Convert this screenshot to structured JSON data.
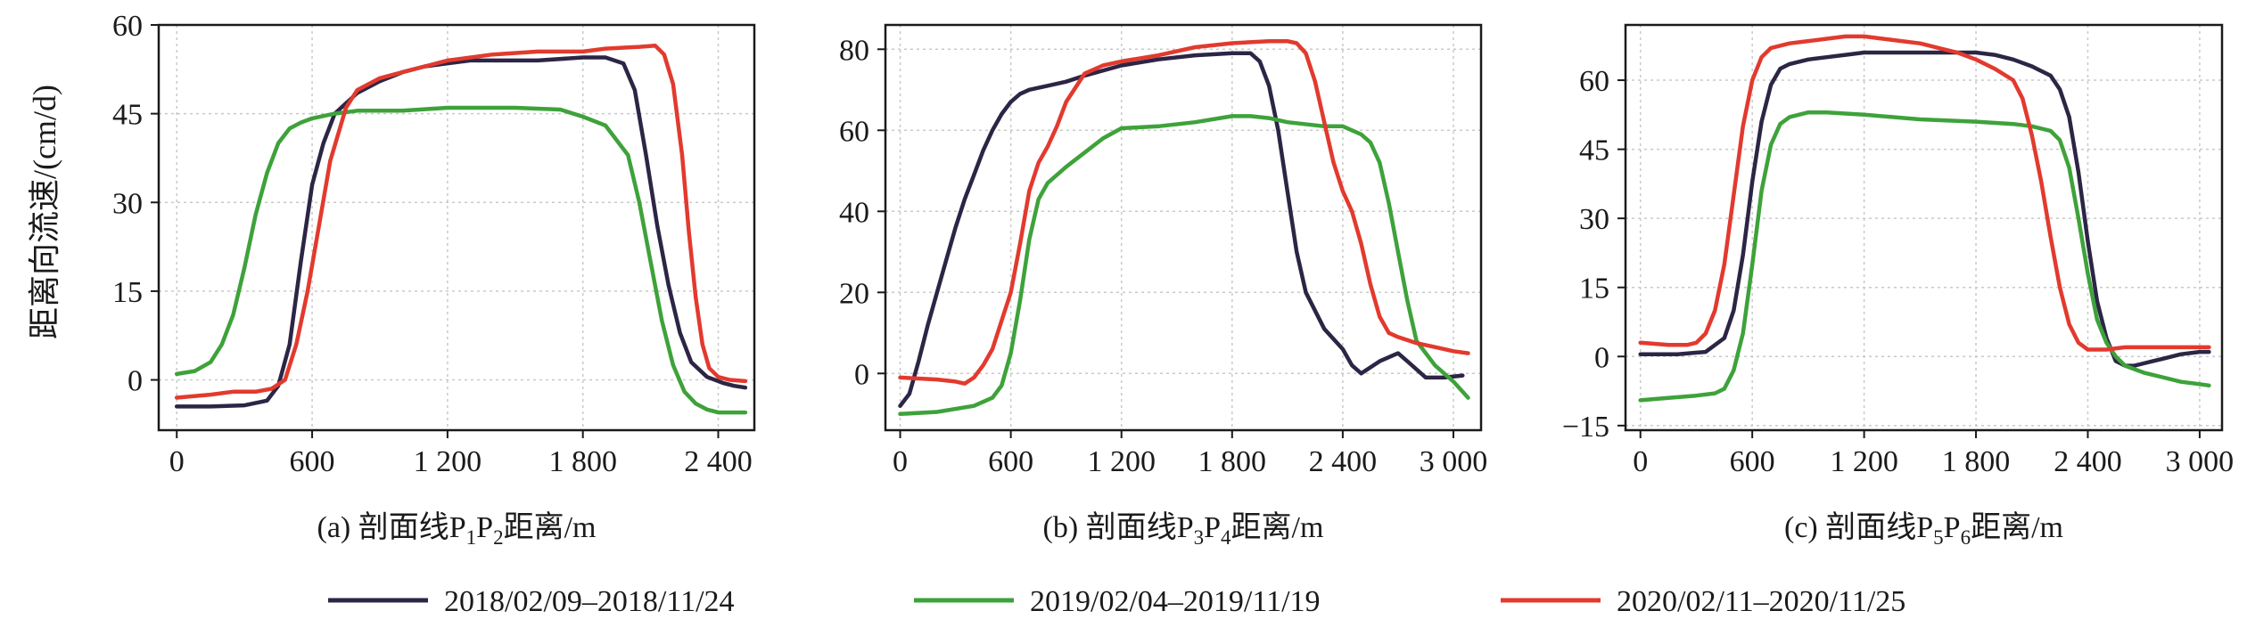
{
  "figure": {
    "ylabel": "距离向流速/(cm/d)",
    "series_names": [
      "2018/02/09–2018/11/24",
      "2019/02/04–2019/11/19",
      "2020/02/11–2020/11/25"
    ],
    "colors": [
      "#2d2545",
      "#3ea23a",
      "#e23a2e"
    ]
  },
  "chart_data": [
    {
      "type": "line",
      "caption": "(a) 剖面线P1P2距离/m",
      "caption_parts": {
        "pre": "(a) 剖面线P",
        "s1": "1",
        "mid": "P",
        "s2": "2",
        "post": "距离/m"
      },
      "xlabel": "距离/m",
      "ylabel": "距离向流速/(cm/d)",
      "xlim": [
        -80,
        2560
      ],
      "ylim": [
        -8.5,
        60
      ],
      "xticks": [
        0,
        600,
        1200,
        1800,
        2400
      ],
      "xtick_labels": [
        "0",
        "600",
        "1 200",
        "1 800",
        "2 400"
      ],
      "yticks": [
        0,
        15,
        30,
        45,
        60
      ],
      "ytick_labels": [
        "0",
        "15",
        "30",
        "45",
        "60"
      ],
      "grid": true,
      "series": [
        {
          "name": "2018/02/09–2018/11/24",
          "color": "#2d2545",
          "x": [
            0,
            150,
            300,
            400,
            450,
            500,
            550,
            600,
            650,
            700,
            800,
            900,
            1000,
            1100,
            1200,
            1300,
            1400,
            1600,
            1800,
            1900,
            1980,
            2030,
            2080,
            2130,
            2180,
            2230,
            2280,
            2350,
            2420,
            2470,
            2520
          ],
          "y": [
            -4.5,
            -4.5,
            -4.3,
            -3.5,
            -1,
            6,
            20,
            33,
            40,
            45,
            48.5,
            50.5,
            52,
            53,
            53.5,
            54,
            54,
            54,
            54.5,
            54.5,
            53.5,
            49,
            38,
            26,
            16,
            8,
            3,
            0.5,
            -0.5,
            -1,
            -1.3
          ]
        },
        {
          "name": "2019/02/04–2019/11/19",
          "color": "#3ea23a",
          "x": [
            0,
            80,
            150,
            200,
            250,
            300,
            350,
            400,
            450,
            500,
            550,
            600,
            700,
            800,
            1000,
            1200,
            1300,
            1500,
            1700,
            1800,
            1900,
            2000,
            2050,
            2100,
            2150,
            2200,
            2250,
            2300,
            2350,
            2400,
            2450,
            2520
          ],
          "y": [
            1,
            1.5,
            3,
            6,
            11,
            19,
            28,
            35,
            40,
            42.5,
            43.5,
            44.2,
            45,
            45.5,
            45.5,
            46,
            46,
            46,
            45.7,
            44.5,
            43,
            38,
            30,
            20,
            10,
            2.5,
            -2,
            -4,
            -5,
            -5.5,
            -5.5,
            -5.5
          ]
        },
        {
          "name": "2020/02/11–2020/11/25",
          "color": "#e23a2e",
          "x": [
            0,
            150,
            250,
            350,
            420,
            480,
            530,
            580,
            630,
            680,
            750,
            800,
            900,
            1000,
            1100,
            1200,
            1400,
            1600,
            1800,
            1900,
            2000,
            2050,
            2120,
            2160,
            2200,
            2240,
            2270,
            2300,
            2330,
            2360,
            2400,
            2450,
            2520
          ],
          "y": [
            -3,
            -2.5,
            -2,
            -2,
            -1.5,
            0,
            6,
            15,
            26,
            37,
            46,
            49,
            51,
            52,
            53,
            54,
            55,
            55.5,
            55.5,
            56,
            56.2,
            56.3,
            56.5,
            55,
            50,
            38,
            25,
            14,
            6,
            2,
            0.5,
            0,
            -0.2
          ]
        }
      ]
    },
    {
      "type": "line",
      "caption": "(b) 剖面线P3P4距离/m",
      "caption_parts": {
        "pre": "(b) 剖面线P",
        "s1": "3",
        "mid": "P",
        "s2": "4",
        "post": "距离/m"
      },
      "xlabel": "距离/m",
      "ylabel": "",
      "xlim": [
        -80,
        3150
      ],
      "ylim": [
        -14,
        86
      ],
      "xticks": [
        0,
        600,
        1200,
        1800,
        2400,
        3000
      ],
      "xtick_labels": [
        "0",
        "600",
        "1 200",
        "1 800",
        "2 400",
        "3 000"
      ],
      "yticks": [
        0,
        20,
        40,
        60,
        80
      ],
      "ytick_labels": [
        "0",
        "20",
        "40",
        "60",
        "80"
      ],
      "grid": true,
      "series": [
        {
          "name": "2018/02/09–2018/11/24",
          "color": "#2d2545",
          "x": [
            0,
            50,
            100,
            150,
            200,
            250,
            300,
            350,
            400,
            450,
            500,
            550,
            600,
            650,
            700,
            800,
            900,
            1000,
            1200,
            1400,
            1600,
            1800,
            1900,
            1950,
            2000,
            2050,
            2100,
            2150,
            2200,
            2300,
            2400,
            2450,
            2500,
            2600,
            2700,
            2750,
            2850,
            2950,
            3050
          ],
          "y": [
            -8,
            -5,
            3,
            12,
            20,
            28,
            36,
            43,
            49,
            55,
            60,
            64,
            67,
            69,
            70,
            71,
            72,
            73.5,
            76,
            77.5,
            78.5,
            79,
            79,
            77,
            71,
            60,
            45,
            30,
            20,
            11,
            6,
            2,
            0,
            3,
            5,
            3,
            -1,
            -1,
            -0.5
          ]
        },
        {
          "name": "2019/02/04–2019/11/19",
          "color": "#3ea23a",
          "x": [
            0,
            200,
            400,
            500,
            550,
            600,
            650,
            700,
            750,
            800,
            900,
            1000,
            1100,
            1200,
            1400,
            1600,
            1800,
            1900,
            2000,
            2100,
            2300,
            2400,
            2500,
            2550,
            2600,
            2650,
            2700,
            2750,
            2800,
            2900,
            3000,
            3080
          ],
          "y": [
            -10,
            -9.5,
            -8,
            -6,
            -3,
            5,
            18,
            33,
            43,
            47,
            51,
            54.5,
            58,
            60.5,
            61,
            62,
            63.5,
            63.5,
            63,
            62,
            61,
            61,
            59,
            57,
            52,
            42,
            30,
            18,
            8,
            2,
            -2,
            -6
          ]
        },
        {
          "name": "2020/02/11–2020/11/25",
          "color": "#e23a2e",
          "x": [
            0,
            200,
            300,
            350,
            400,
            450,
            500,
            550,
            600,
            650,
            700,
            750,
            800,
            850,
            900,
            1000,
            1100,
            1200,
            1400,
            1600,
            1800,
            2000,
            2100,
            2150,
            2200,
            2250,
            2300,
            2350,
            2400,
            2450,
            2500,
            2550,
            2600,
            2650,
            2700,
            2800,
            2900,
            3000,
            3080
          ],
          "y": [
            -1,
            -1.5,
            -2,
            -2.5,
            -1,
            2,
            6,
            13,
            20,
            32,
            45,
            52,
            56,
            61,
            67,
            74,
            76,
            77,
            78.5,
            80.5,
            81.5,
            82,
            82,
            81.5,
            79,
            72,
            62,
            52,
            45,
            40,
            32,
            22,
            14,
            10,
            9,
            7.5,
            6.5,
            5.5,
            5
          ]
        }
      ]
    },
    {
      "type": "line",
      "caption": "(c) 剖面线P5P6距离/m",
      "caption_parts": {
        "pre": "(c) 剖面线P",
        "s1": "5",
        "mid": "P",
        "s2": "6",
        "post": "距离/m"
      },
      "xlabel": "距离/m",
      "ylabel": "",
      "xlim": [
        -80,
        3120
      ],
      "ylim": [
        -16,
        72
      ],
      "xticks": [
        0,
        600,
        1200,
        1800,
        2400,
        3000
      ],
      "xtick_labels": [
        "0",
        "600",
        "1 200",
        "1 800",
        "2 400",
        "3 000"
      ],
      "yticks": [
        -15,
        0,
        15,
        30,
        45,
        60
      ],
      "ytick_labels": [
        "−15",
        "0",
        "15",
        "30",
        "45",
        "60"
      ],
      "grid": true,
      "series": [
        {
          "name": "2018/02/09–2018/11/24",
          "color": "#2d2545",
          "x": [
            0,
            200,
            350,
            450,
            500,
            550,
            600,
            650,
            700,
            750,
            800,
            900,
            1000,
            1100,
            1200,
            1400,
            1600,
            1800,
            1900,
            2000,
            2100,
            2200,
            2250,
            2300,
            2350,
            2400,
            2450,
            2500,
            2550,
            2600,
            2650,
            2700,
            2800,
            2900,
            3000,
            3050
          ],
          "y": [
            0.5,
            0.5,
            1,
            4,
            10,
            22,
            38,
            51,
            59,
            62.5,
            63.5,
            64.5,
            65,
            65.5,
            66,
            66,
            66,
            66,
            65.5,
            64.5,
            63,
            61,
            58,
            52,
            40,
            25,
            12,
            4,
            -1,
            -2,
            -2,
            -1.5,
            -0.5,
            0.5,
            1,
            1
          ]
        },
        {
          "name": "2019/02/04–2019/11/19",
          "color": "#3ea23a",
          "x": [
            0,
            150,
            300,
            400,
            450,
            500,
            550,
            600,
            650,
            700,
            750,
            800,
            900,
            1000,
            1200,
            1500,
            1800,
            2000,
            2100,
            2200,
            2250,
            2300,
            2350,
            2400,
            2450,
            2500,
            2550,
            2600,
            2700,
            2800,
            2900,
            3000,
            3050
          ],
          "y": [
            -9.5,
            -9,
            -8.5,
            -8,
            -7,
            -3,
            5,
            20,
            36,
            46,
            50.5,
            52,
            53,
            53,
            52.5,
            51.5,
            51,
            50.5,
            50,
            49,
            47,
            41,
            30,
            18,
            8,
            3,
            0,
            -2,
            -3.5,
            -4.5,
            -5.5,
            -6,
            -6.3
          ]
        },
        {
          "name": "2020/02/11–2020/11/25",
          "color": "#e23a2e",
          "x": [
            0,
            150,
            250,
            300,
            350,
            400,
            450,
            500,
            550,
            600,
            650,
            700,
            800,
            900,
            1000,
            1100,
            1200,
            1300,
            1400,
            1500,
            1600,
            1700,
            1800,
            1900,
            2000,
            2050,
            2100,
            2150,
            2200,
            2250,
            2300,
            2350,
            2400,
            2500,
            2600,
            2700,
            2800,
            2900,
            3000,
            3050
          ],
          "y": [
            3,
            2.5,
            2.5,
            3,
            5,
            10,
            20,
            35,
            50,
            60,
            65,
            67,
            68,
            68.5,
            69,
            69.5,
            69.5,
            69,
            68.5,
            68,
            67,
            66,
            64.5,
            62.5,
            60,
            56,
            48,
            38,
            26,
            15,
            7,
            3,
            1.5,
            1.5,
            2,
            2,
            2,
            2,
            2,
            2
          ]
        }
      ]
    }
  ]
}
